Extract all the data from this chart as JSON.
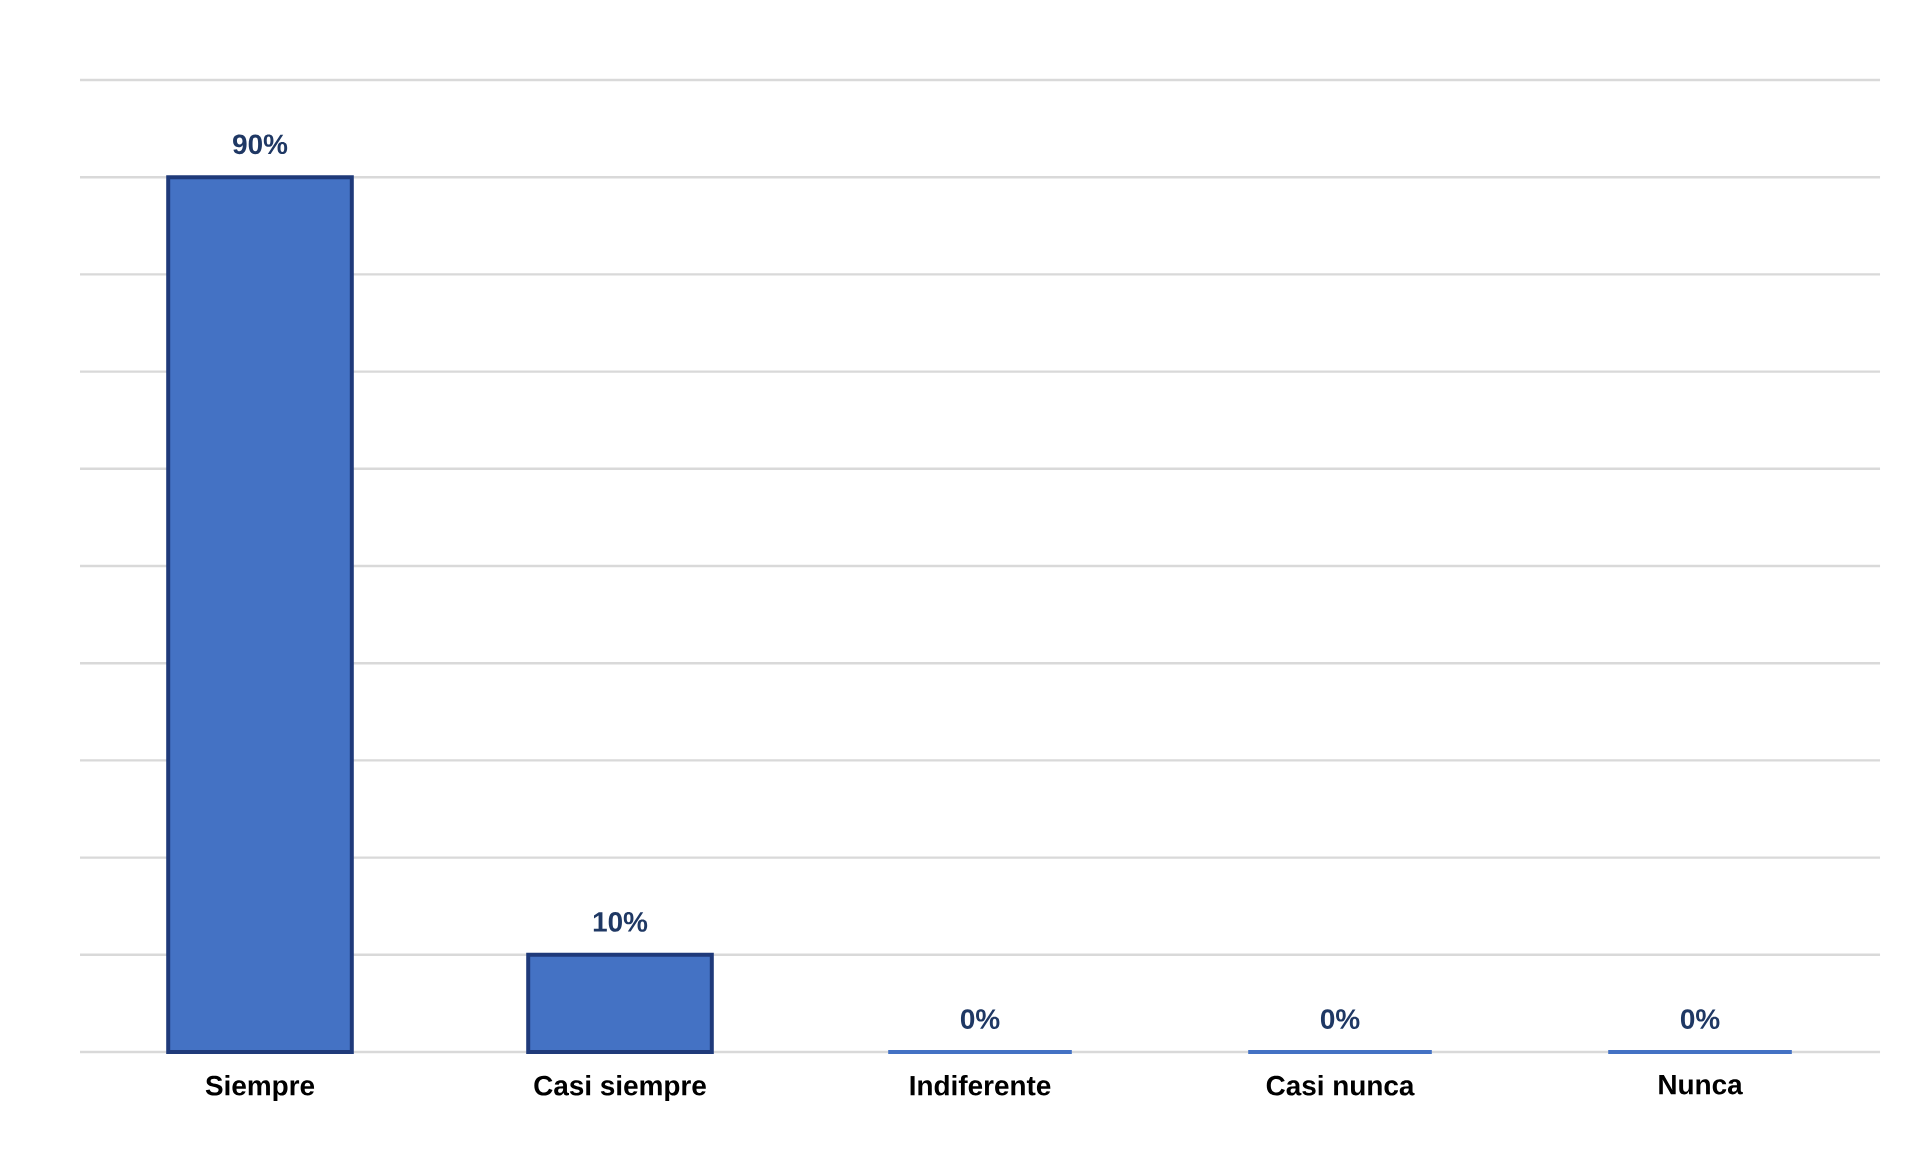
{
  "chart_data": {
    "type": "bar",
    "categories": [
      "Siempre",
      "Casi siempre",
      "Indiferente",
      "Casi nunca",
      "Nunca"
    ],
    "values": [
      90,
      10,
      0,
      0,
      0
    ],
    "value_labels": [
      "90%",
      "10%",
      "0%",
      "0%",
      "0%"
    ],
    "color": "#4472c4",
    "ylim": [
      0,
      100
    ],
    "yticks": [
      {
        "value": 0,
        "label": null
      },
      {
        "value": 10,
        "label": null
      },
      {
        "value": 20,
        "label": null
      },
      {
        "value": 30,
        "label": null
      },
      {
        "value": 40,
        "label": null
      },
      {
        "value": 50,
        "label": null
      },
      {
        "value": 60,
        "label": null
      },
      {
        "value": 70,
        "label": null
      },
      {
        "value": 80,
        "label": null
      },
      {
        "value": 90,
        "label": null
      },
      {
        "value": 100,
        "label": null
      }
    ],
    "tick_labels": "x",
    "grid": "y"
  }
}
